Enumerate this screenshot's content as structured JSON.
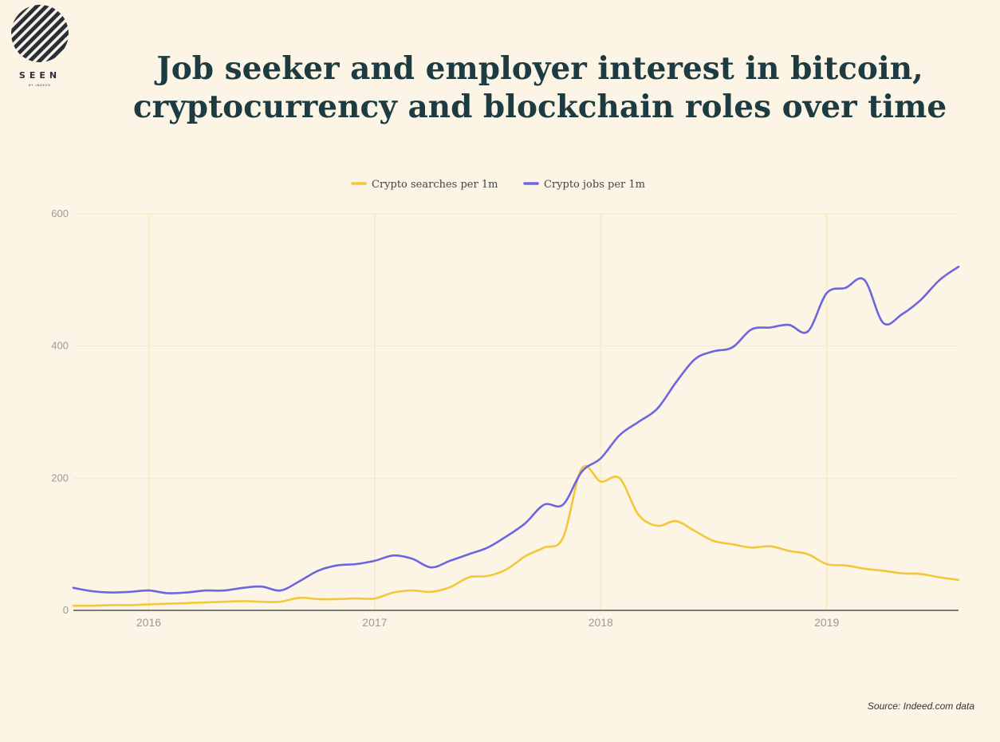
{
  "logo": {
    "text": "SEEN",
    "subtext": "BY INDEED"
  },
  "title_lines": [
    "Job seeker and employer interest in bitcoin,",
    "cryptocurrency and blockchain roles over time"
  ],
  "source": "Source: Indeed.com data",
  "colors": {
    "searches": "#f2c73a",
    "jobs": "#6b66e0",
    "grid": "#f7e9c0",
    "axis": "#333333",
    "tick": "#9a9a9a"
  },
  "chart_data": {
    "type": "line",
    "title": "Job seeker and employer interest in bitcoin, cryptocurrency and blockchain roles over time",
    "xlabel": "",
    "ylabel": "",
    "x_ticks": [
      "2016",
      "2017",
      "2018",
      "2019"
    ],
    "y_ticks": [
      "0",
      "200",
      "400",
      "600"
    ],
    "ylim": [
      0,
      600
    ],
    "xlim": [
      "2015-09",
      "2019-08"
    ],
    "legend": "top-center",
    "grid": true,
    "x": [
      "2015-09",
      "2015-10",
      "2015-11",
      "2015-12",
      "2016-01",
      "2016-02",
      "2016-03",
      "2016-04",
      "2016-05",
      "2016-06",
      "2016-07",
      "2016-08",
      "2016-09",
      "2016-10",
      "2016-11",
      "2016-12",
      "2017-01",
      "2017-02",
      "2017-03",
      "2017-04",
      "2017-05",
      "2017-06",
      "2017-07",
      "2017-08",
      "2017-09",
      "2017-10",
      "2017-11",
      "2017-12",
      "2018-01",
      "2018-02",
      "2018-03",
      "2018-04",
      "2018-05",
      "2018-06",
      "2018-07",
      "2018-08",
      "2018-09",
      "2018-10",
      "2018-11",
      "2018-12",
      "2019-01",
      "2019-02",
      "2019-03",
      "2019-04",
      "2019-05",
      "2019-06",
      "2019-07",
      "2019-08"
    ],
    "series": [
      {
        "name": "Crypto searches per 1m",
        "values": [
          7,
          7,
          8,
          8,
          9,
          10,
          11,
          12,
          13,
          14,
          13,
          13,
          19,
          17,
          17,
          18,
          18,
          27,
          30,
          28,
          35,
          50,
          52,
          62,
          82,
          95,
          110,
          215,
          195,
          200,
          145,
          128,
          135,
          120,
          105,
          100,
          95,
          97,
          90,
          85,
          70,
          68,
          63,
          60,
          56,
          55,
          50,
          46
        ]
      },
      {
        "name": "Crypto jobs per 1m",
        "values": [
          34,
          29,
          27,
          28,
          30,
          26,
          27,
          30,
          30,
          34,
          36,
          30,
          44,
          60,
          68,
          70,
          75,
          83,
          78,
          65,
          75,
          85,
          95,
          112,
          132,
          160,
          160,
          210,
          230,
          265,
          285,
          305,
          345,
          380,
          392,
          398,
          425,
          428,
          432,
          422,
          480,
          488,
          500,
          435,
          448,
          470,
          500,
          520
        ]
      }
    ]
  }
}
